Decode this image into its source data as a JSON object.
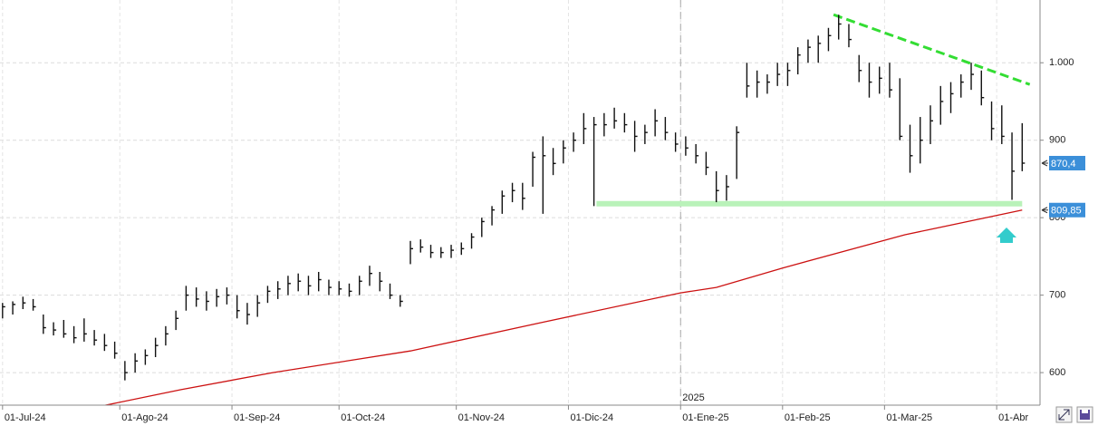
{
  "chart_data": {
    "type": "ohlc",
    "xlim": [
      -0.5,
      203.5
    ],
    "ylim": [
      558,
      1081
    ],
    "grid": true,
    "xticks": [
      {
        "value": 0,
        "label": "01-Jul-24"
      },
      {
        "value": 23,
        "label": "01-Ago-24"
      },
      {
        "value": 45,
        "label": "01-Sep-24"
      },
      {
        "value": 66,
        "label": "01-Oct-24"
      },
      {
        "value": 89,
        "label": "01-Nov-24"
      },
      {
        "value": 111,
        "label": "01-Dic-24"
      },
      {
        "value": 133,
        "label": "01-Ene-25"
      },
      {
        "value": 153,
        "label": "01-Feb-25"
      },
      {
        "value": 173,
        "label": "01-Mar-25"
      },
      {
        "value": 195,
        "label": "01-Abr"
      }
    ],
    "yticks": [
      600,
      700,
      800,
      900,
      {
        "value": 1000,
        "label": "1.000"
      }
    ],
    "year_marker": {
      "x": 133,
      "label": "2025"
    },
    "bars": {
      "color": "#111111",
      "x": [
        0,
        2,
        4,
        6,
        8,
        10,
        12,
        14,
        16,
        18,
        20,
        22,
        24,
        26,
        28,
        30,
        32,
        34,
        36,
        38,
        40,
        42,
        44,
        46,
        48,
        50,
        52,
        54,
        56,
        58,
        60,
        62,
        64,
        66,
        68,
        70,
        72,
        74,
        76,
        78,
        80,
        82,
        84,
        86,
        88,
        90,
        92,
        94,
        96,
        98,
        100,
        102,
        104,
        106,
        108,
        110,
        112,
        114,
        116,
        118,
        120,
        122,
        124,
        126,
        128,
        130,
        132,
        134,
        136,
        138,
        140,
        142,
        144,
        146,
        148,
        150,
        152,
        154,
        156,
        158,
        160,
        162,
        164,
        166,
        168,
        170,
        172,
        174,
        176,
        178,
        180,
        182,
        184,
        186,
        188,
        190,
        192,
        194,
        196,
        198,
        200
      ],
      "high": [
        690,
        692,
        698,
        695,
        675,
        665,
        668,
        660,
        670,
        655,
        650,
        640,
        615,
        625,
        630,
        645,
        660,
        680,
        712,
        710,
        705,
        708,
        710,
        700,
        690,
        700,
        712,
        718,
        725,
        728,
        725,
        730,
        720,
        718,
        715,
        725,
        738,
        730,
        715,
        700,
        770,
        772,
        765,
        762,
        765,
        768,
        780,
        800,
        815,
        835,
        845,
        845,
        885,
        905,
        890,
        900,
        910,
        935,
        930,
        935,
        942,
        935,
        925,
        920,
        940,
        930,
        910,
        905,
        895,
        885,
        860,
        855,
        918,
        1000,
        990,
        985,
        1000,
        1000,
        1020,
        1030,
        1035,
        1045,
        1062,
        1050,
        1010,
        1000,
        995,
        1000,
        980,
        920,
        930,
        945,
        970,
        975,
        985,
        1000,
        990,
        950,
        945,
        910,
        922
      ],
      "low": [
        670,
        675,
        682,
        680,
        650,
        648,
        645,
        638,
        640,
        635,
        628,
        618,
        590,
        600,
        610,
        620,
        635,
        655,
        680,
        685,
        680,
        685,
        688,
        670,
        662,
        672,
        690,
        695,
        700,
        705,
        700,
        705,
        700,
        700,
        698,
        700,
        712,
        705,
        695,
        685,
        740,
        755,
        748,
        748,
        748,
        752,
        760,
        775,
        790,
        805,
        820,
        810,
        840,
        805,
        855,
        870,
        885,
        895,
        815,
        905,
        915,
        910,
        885,
        895,
        905,
        900,
        885,
        880,
        870,
        855,
        820,
        822,
        850,
        955,
        955,
        960,
        970,
        970,
        985,
        1000,
        1000,
        1015,
        1030,
        1020,
        975,
        955,
        960,
        955,
        900,
        858,
        870,
        895,
        920,
        935,
        955,
        965,
        945,
        900,
        895,
        823,
        860
      ],
      "close": [
        685,
        688,
        690,
        685,
        658,
        655,
        650,
        645,
        650,
        642,
        635,
        625,
        600,
        615,
        622,
        635,
        650,
        670,
        700,
        695,
        692,
        698,
        700,
        680,
        675,
        690,
        705,
        708,
        715,
        718,
        712,
        720,
        710,
        708,
        705,
        718,
        728,
        718,
        700,
        692,
        760,
        762,
        755,
        755,
        758,
        760,
        775,
        795,
        810,
        828,
        835,
        825,
        878,
        880,
        870,
        890,
        900,
        915,
        920,
        920,
        925,
        920,
        905,
        910,
        925,
        910,
        895,
        890,
        880,
        865,
        835,
        840,
        910,
        970,
        975,
        975,
        985,
        990,
        1010,
        1020,
        1025,
        1035,
        1050,
        1030,
        990,
        975,
        980,
        965,
        905,
        880,
        900,
        925,
        950,
        960,
        975,
        985,
        955,
        915,
        905,
        860,
        870.4
      ]
    },
    "moving_average": {
      "color": "#cc1111",
      "x": [
        18,
        35,
        53,
        80,
        106,
        133,
        140,
        153,
        177,
        200
      ],
      "values": [
        555,
        578,
        600,
        628,
        665,
        703,
        710,
        735,
        778,
        809.85
      ]
    },
    "trendlines": [
      {
        "x": [
          163,
          201.5
        ],
        "values": [
          1062,
          972
        ],
        "color": "#33dd33",
        "dashed": true
      },
      {
        "x": [
          116.5,
          200
        ],
        "values": [
          818,
          818
        ],
        "color": "#b9f2b9",
        "dashed": false
      }
    ],
    "price_tags": {
      "values": [
        870.4,
        809.85
      ],
      "value_labels": [
        "870,4",
        "809,85"
      ],
      "color": "#3b8fd9"
    }
  }
}
